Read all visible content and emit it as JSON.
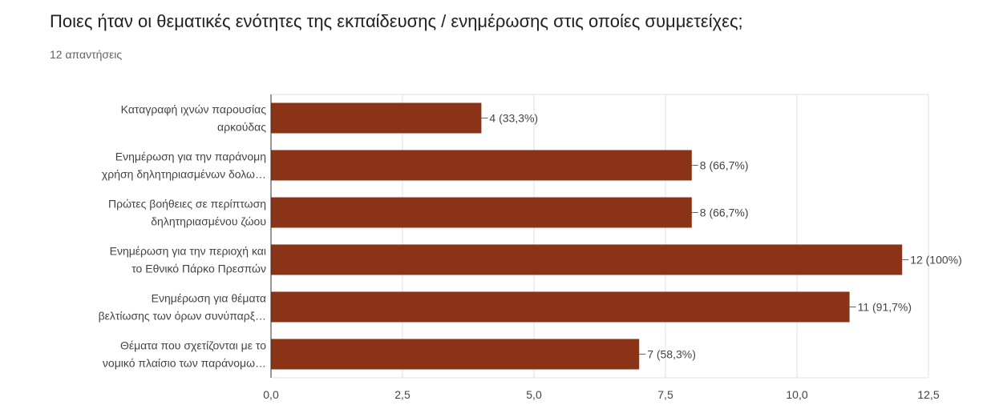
{
  "header": {
    "title": "Ποιες ήταν οι θεματικές ενότητες της εκπαίδευσης / ενημέρωσης στις οποίες συμμετείχες;",
    "responses": "12 απαντήσεις"
  },
  "chart_data": {
    "type": "bar",
    "orientation": "horizontal",
    "categories": [
      [
        "Καταγραφή ιχνών παρουσίας",
        "αρκούδας"
      ],
      [
        "Ενημέρωση για την παράνομη",
        "χρήση δηλητηριασμένων δολω…"
      ],
      [
        "Πρώτες βοήθειες σε περίπτωση",
        "δηλητηριασμένου ζώου"
      ],
      [
        "Ενημέρωση για την περιοχή και",
        "το Εθνικό Πάρκο Πρεσπών"
      ],
      [
        "Ενημέρωση για θέματα",
        "βελτίωσης των όρων συνύπαρξ…"
      ],
      [
        "Θέματα που σχετίζονται με το",
        "νομικό πλαίσιο των παράνομω…"
      ]
    ],
    "values": [
      4,
      8,
      8,
      12,
      11,
      7
    ],
    "value_labels": [
      "4 (33,3%)",
      "8 (66,7%)",
      "8 (66,7%)",
      "12 (100%)",
      "11 (91,7%)",
      "7 (58,3%)"
    ],
    "xlim": [
      0,
      12.5
    ],
    "xticks": [
      "0,0",
      "2,5",
      "5,0",
      "7,5",
      "10,0",
      "12,5"
    ],
    "grid": true,
    "bar_color": "#8b3316",
    "grid_color": "#e0e0e0",
    "axis_color": "#bdbdbd"
  }
}
